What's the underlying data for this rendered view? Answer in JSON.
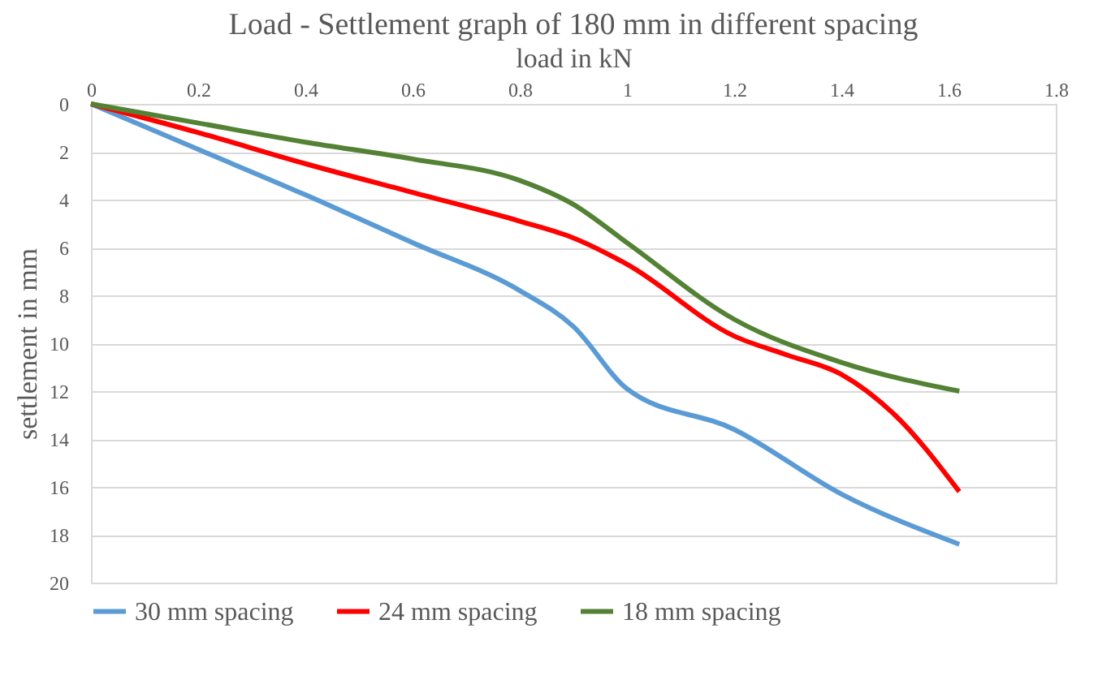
{
  "chart_data": {
    "type": "line",
    "title": "Load - Settlement graph of 180 mm in different spacing",
    "xlabel": "load in kN",
    "ylabel": "settlement in mm",
    "xlim": [
      0,
      1.8
    ],
    "xticks": [
      0,
      0.2,
      0.4,
      0.6,
      0.8,
      1,
      1.2,
      1.4,
      1.6,
      1.8
    ],
    "ylim": [
      20,
      0
    ],
    "yticks": [
      0,
      2,
      4,
      6,
      8,
      10,
      12,
      14,
      16,
      18,
      20
    ],
    "grid": "y",
    "legend": "bottom",
    "marker": "none",
    "line_style": "solid",
    "series": [
      {
        "name": "30 mm spacing",
        "color": "#5b9bd5",
        "x": [
          0,
          0.2,
          0.4,
          0.6,
          0.8,
          0.9,
          1,
          1.2,
          1.4,
          1.62
        ],
        "values": [
          0,
          1.9,
          3.8,
          5.8,
          7.8,
          9.3,
          11.9,
          13.6,
          16.3,
          18.4
        ]
      },
      {
        "name": "24 mm spacing",
        "color": "#ff0000",
        "x": [
          0,
          0.2,
          0.4,
          0.6,
          0.8,
          0.9,
          1,
          1.2,
          1.3,
          1.4,
          1.5,
          1.62
        ],
        "values": [
          0,
          1.2,
          2.5,
          3.7,
          4.9,
          5.6,
          6.7,
          9.7,
          10.5,
          11.3,
          13,
          16.2
        ]
      },
      {
        "name": "18 mm spacing",
        "color": "#548235",
        "x": [
          0,
          0.2,
          0.4,
          0.6,
          0.8,
          0.9,
          1,
          1.2,
          1.4,
          1.62
        ],
        "values": [
          0,
          0.8,
          1.6,
          2.3,
          3.2,
          4.2,
          5.8,
          9,
          10.8,
          12
        ]
      }
    ]
  }
}
